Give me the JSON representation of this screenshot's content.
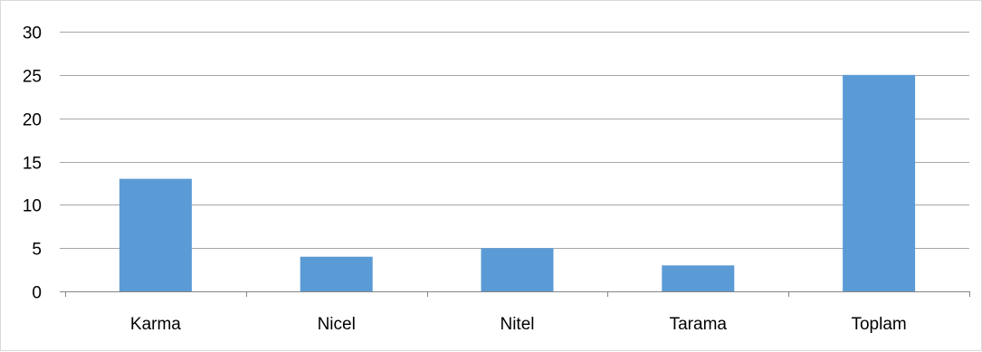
{
  "chart_data": {
    "type": "bar",
    "categories": [
      "Karma",
      "Nicel",
      "Nitel",
      "Tarama",
      "Toplam"
    ],
    "values": [
      13,
      4,
      5,
      3,
      25
    ],
    "title": "",
    "xlabel": "",
    "ylabel": "",
    "ylim": [
      0,
      30
    ],
    "yticks": [
      0,
      5,
      10,
      15,
      20,
      25,
      30
    ],
    "grid": true,
    "legend": "none",
    "bar_color": "#5b9bd5"
  }
}
